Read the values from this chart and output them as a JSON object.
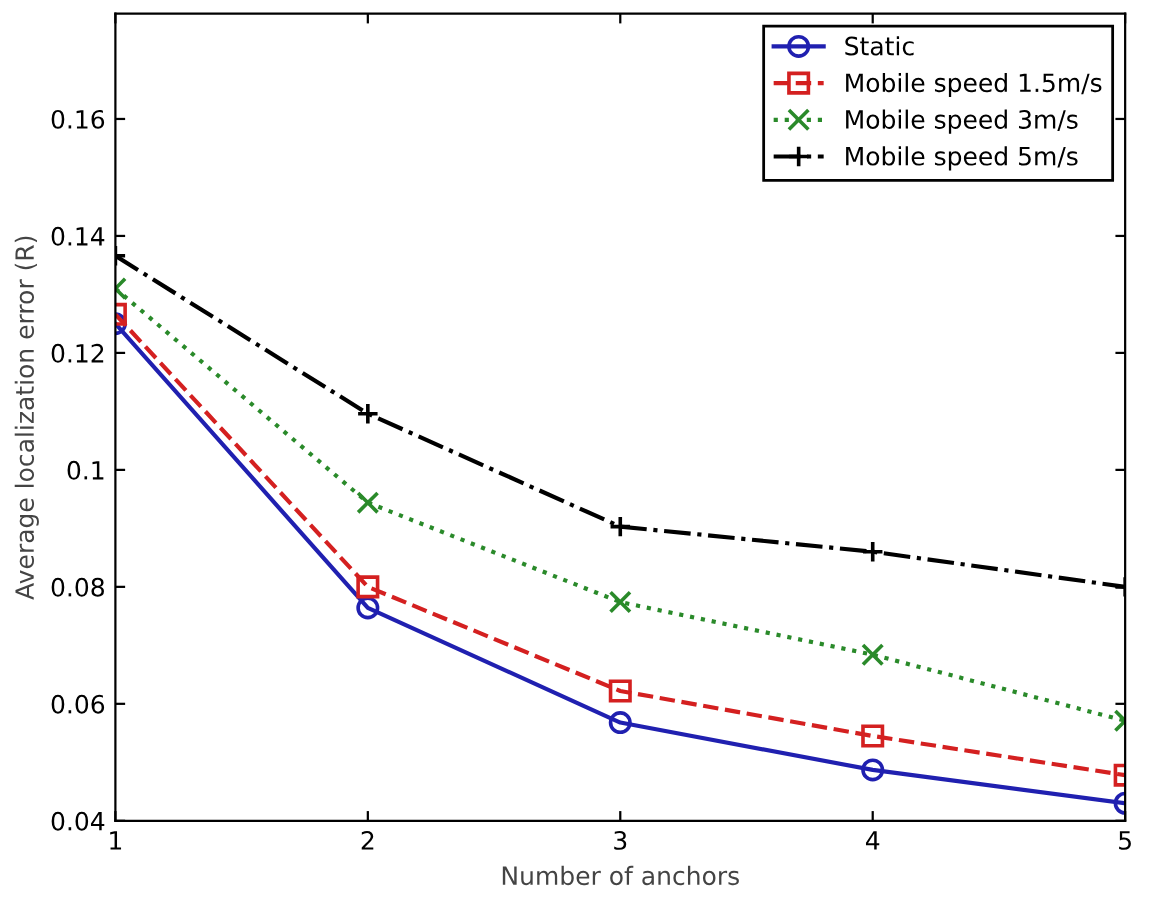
{
  "chart_data": {
    "type": "line",
    "xlabel": "Number of anchors",
    "ylabel": "Average localization error (R)",
    "x": [
      1,
      2,
      3,
      4,
      5
    ],
    "xlim": [
      1,
      5
    ],
    "xticks": [
      1,
      2,
      3,
      4,
      5
    ],
    "ylim": [
      0.04,
      0.178
    ],
    "yticks": [
      0.04,
      0.06,
      0.08,
      0.1,
      0.12,
      0.14,
      0.16
    ],
    "grid": false,
    "legend": "top right",
    "series": [
      {
        "name": "Static",
        "color": "#2020b0",
        "marker": "circle",
        "line_style": "solid",
        "values": [
          0.125,
          0.0764,
          0.0568,
          0.0487,
          0.043
        ]
      },
      {
        "name": "Mobile speed 1.5m/s",
        "color": "#d42020",
        "marker": "square",
        "line_style": "dashed",
        "values": [
          0.1266,
          0.08,
          0.0622,
          0.0545,
          0.0478
        ]
      },
      {
        "name": "Mobile speed 3m/s",
        "color": "#2a8a2a",
        "marker": "cross",
        "line_style": "dotted",
        "values": [
          0.131,
          0.0944,
          0.0774,
          0.0684,
          0.0571
        ]
      },
      {
        "name": "Mobile speed 5m/s",
        "color": "#000000",
        "marker": "plus",
        "line_style": "dashdot",
        "values": [
          0.1366,
          0.1096,
          0.0903,
          0.086,
          0.08
        ]
      }
    ]
  }
}
